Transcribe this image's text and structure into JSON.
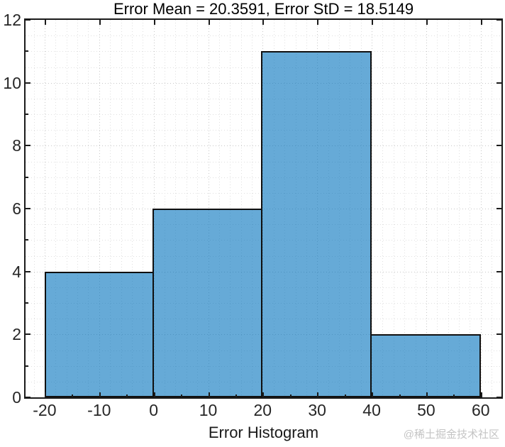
{
  "title": "Error Mean = 20.3591, Error StD = 18.5149",
  "xlabel": "Error Histogram",
  "watermark": "@稀土掘金技术社区",
  "chart_data": {
    "type": "bar",
    "subtype": "histogram",
    "title": "Error Mean = 20.3591, Error StD = 18.5149",
    "xlabel": "Error Histogram",
    "ylabel": "",
    "bin_edges": [
      -20,
      0,
      20,
      40,
      60
    ],
    "counts": [
      4,
      6,
      11,
      2
    ],
    "xlim": [
      -23.5,
      63.8
    ],
    "ylim": [
      0,
      12
    ],
    "xticks": [
      -20,
      -10,
      0,
      10,
      20,
      30,
      40,
      50,
      60
    ],
    "yticks": [
      0,
      2,
      4,
      6,
      8,
      10,
      12
    ],
    "xminorticks": [
      -15,
      -5,
      5,
      15,
      25,
      35,
      45,
      55
    ],
    "yminorticks": [
      1,
      3,
      5,
      7,
      9,
      11
    ],
    "minor_grid_x_step": 2,
    "minor_grid_y_step": 0.5,
    "grid": "major+minor dotted",
    "legend": "none",
    "colors": {
      "bar_fill": "rgba(0,114,189,0.6)",
      "bar_fill_flat": "#66AAD7",
      "bar_edge": "#101010",
      "axis": "#1b1b1b",
      "grid_major": "#c7c7c7",
      "grid_minor": "#dfdfdf",
      "tick_text": "#262626",
      "title_text": "#000000",
      "watermark_text": "#c4c4c4"
    }
  }
}
